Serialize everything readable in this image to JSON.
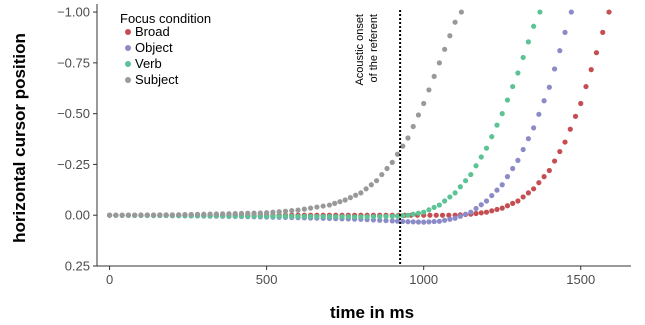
{
  "chart_data": {
    "type": "scatter",
    "xlabel": "time in ms",
    "ylabel": "horizontal cursor position",
    "xlim": [
      -40,
      1660
    ],
    "ylim": [
      0.25,
      -1.02
    ],
    "y_reversed": true,
    "x_ticks": [
      0,
      500,
      1000,
      1500
    ],
    "y_ticks": [
      {
        "value": -1.0,
        "label": "−1.00"
      },
      {
        "value": -0.75,
        "label": "−0.75"
      },
      {
        "value": -0.5,
        "label": "−0.50"
      },
      {
        "value": -0.25,
        "label": "−0.25"
      },
      {
        "value": 0.0,
        "label": "0.00"
      },
      {
        "value": 0.25,
        "label": "0.25"
      }
    ],
    "grid": false,
    "legend": {
      "title": "Focus condition",
      "placement": "top-left"
    },
    "annotation": {
      "x": 925,
      "style": "dotted vertical line",
      "lines": [
        "Acoustic onset",
        "of the referent"
      ]
    },
    "series": [
      {
        "name": "Broad",
        "color": "#c44e52",
        "x": [
          0,
          200,
          400,
          600,
          800,
          900,
          1000,
          1100,
          1150,
          1200,
          1250,
          1300,
          1350,
          1400,
          1450,
          1500,
          1550,
          1590
        ],
        "y": [
          0.0,
          0.0,
          0.0,
          0.0,
          0.0,
          0.0,
          0.0,
          0.0,
          -0.005,
          -0.015,
          -0.035,
          -0.07,
          -0.13,
          -0.22,
          -0.36,
          -0.55,
          -0.8,
          -1.0
        ]
      },
      {
        "name": "Object",
        "color": "#8b8bc8",
        "x": [
          0,
          200,
          400,
          600,
          800,
          900,
          950,
          1000,
          1050,
          1100,
          1150,
          1200,
          1250,
          1300,
          1350,
          1400,
          1450,
          1470
        ],
        "y": [
          0.0,
          0.002,
          0.006,
          0.012,
          0.02,
          0.028,
          0.032,
          0.034,
          0.03,
          0.015,
          -0.015,
          -0.07,
          -0.15,
          -0.27,
          -0.43,
          -0.63,
          -0.9,
          -1.0
        ]
      },
      {
        "name": "Verb",
        "color": "#5cc394",
        "x": [
          0,
          200,
          400,
          600,
          800,
          900,
          950,
          1000,
          1050,
          1100,
          1150,
          1200,
          1250,
          1300,
          1350,
          1370
        ],
        "y": [
          0.0,
          0.002,
          0.004,
          0.006,
          0.008,
          0.006,
          0.0,
          -0.015,
          -0.05,
          -0.11,
          -0.2,
          -0.33,
          -0.5,
          -0.7,
          -0.93,
          -1.0
        ]
      },
      {
        "name": "Subject",
        "color": "#999999",
        "x": [
          0,
          200,
          400,
          500,
          600,
          700,
          750,
          800,
          850,
          900,
          950,
          1000,
          1050,
          1100,
          1120
        ],
        "y": [
          0.0,
          -0.002,
          -0.008,
          -0.012,
          -0.025,
          -0.05,
          -0.075,
          -0.11,
          -0.17,
          -0.26,
          -0.38,
          -0.55,
          -0.75,
          -0.95,
          -1.0
        ]
      }
    ]
  }
}
